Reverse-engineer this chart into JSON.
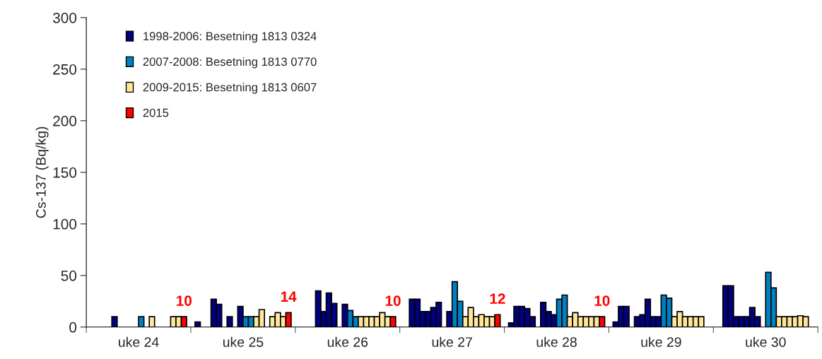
{
  "chart_data": {
    "type": "bar",
    "ylabel": "Cs-137 (Bq/kg)",
    "categories": [
      "uke 24",
      "uke 25",
      "uke 26",
      "uke 27",
      "uke 28",
      "uke 29",
      "uke 30"
    ],
    "ylim": [
      0,
      300
    ],
    "yticks": [
      0,
      50,
      100,
      150,
      200,
      250,
      300
    ],
    "grid": false,
    "legend": "top left",
    "series": [
      {
        "name": "1998-2006: Besetning 1813 0324",
        "color": "#000080",
        "values": [
          null,
          5,
          null,
          null,
          4,
          5,
          null
        ]
      },
      {
        "color": "#000080",
        "values": [
          null,
          null,
          null,
          27,
          20,
          20,
          40
        ]
      },
      {
        "color": "#000080",
        "values": [
          null,
          null,
          null,
          27,
          20,
          20,
          40
        ]
      },
      {
        "color": "#000080",
        "values": [
          null,
          27,
          35,
          15,
          18,
          null,
          10
        ]
      },
      {
        "color": "#000080",
        "values": [
          10,
          22,
          15,
          15,
          10,
          10,
          10
        ]
      },
      {
        "color": "#000080",
        "values": [
          null,
          null,
          33,
          19,
          null,
          12,
          10
        ]
      },
      {
        "color": "#000080",
        "values": [
          null,
          10,
          23,
          24,
          24,
          27,
          19
        ]
      },
      {
        "color": "#000080",
        "values": [
          null,
          null,
          null,
          null,
          15,
          10,
          10
        ]
      },
      {
        "color": "#000080",
        "values": [
          null,
          20,
          22,
          15,
          12,
          10,
          null
        ]
      },
      {
        "name": "2007-2008: Besetning 1813 0770",
        "color": "#0080c0",
        "values": [
          10,
          10,
          16,
          44,
          27,
          31,
          53
        ]
      },
      {
        "color": "#0080c0",
        "values": [
          null,
          10,
          10,
          25,
          31,
          28,
          38
        ]
      },
      {
        "name": "2009-2015: Besetning 1813 0607",
        "color": "#ffe699",
        "values": [
          10,
          10,
          10,
          10,
          10,
          10,
          10
        ]
      },
      {
        "color": "#ffe699",
        "values": [
          null,
          17,
          10,
          19,
          14,
          15,
          10
        ]
      },
      {
        "color": "#ffe699",
        "values": [
          null,
          null,
          10,
          10,
          10,
          10,
          10
        ]
      },
      {
        "color": "#ffe699",
        "values": [
          null,
          10,
          10,
          12,
          10,
          10,
          10
        ]
      },
      {
        "color": "#ffe699",
        "values": [
          10,
          14,
          14,
          10,
          10,
          10,
          11
        ]
      },
      {
        "color": "#ffe699",
        "values": [
          10,
          10,
          10,
          10,
          10,
          10,
          10
        ]
      },
      {
        "name": "2015",
        "color": "#ff0000",
        "values": [
          10,
          14,
          10,
          12,
          10,
          null,
          null
        ],
        "value_labels": [
          "10",
          "14",
          "10",
          "12",
          "10",
          null,
          null
        ]
      }
    ]
  }
}
